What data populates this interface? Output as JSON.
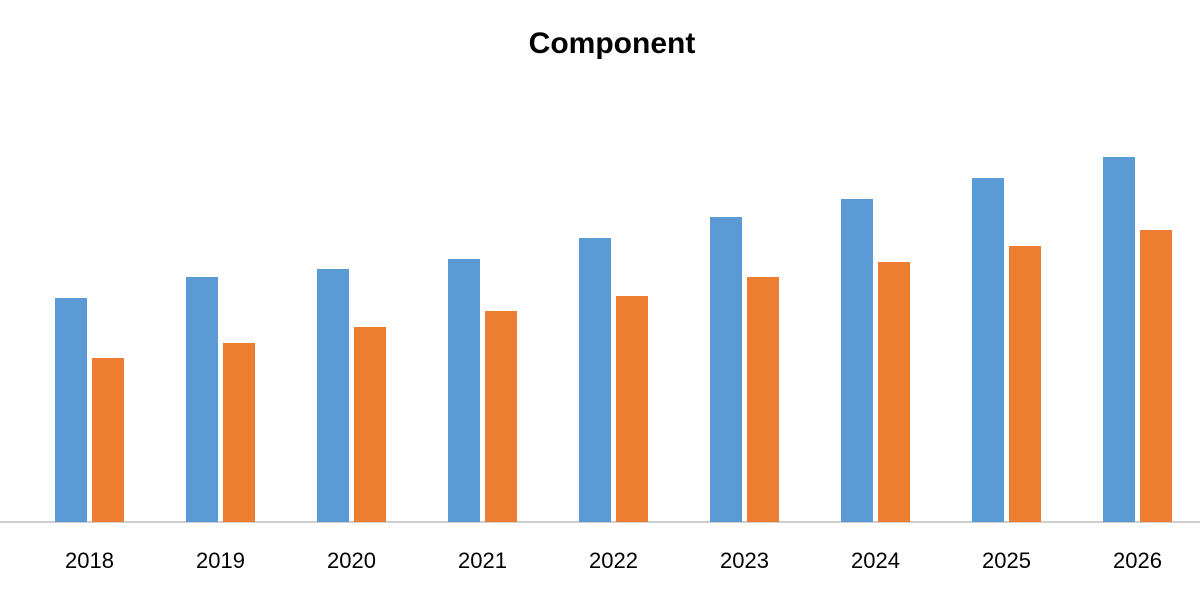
{
  "chart_data": {
    "type": "bar",
    "title": "Component",
    "categories": [
      "2018",
      "2019",
      "2020",
      "2021",
      "2022",
      "2023",
      "2024",
      "2025",
      "2026"
    ],
    "series": [
      {
        "color": "#5b9bd5",
        "values": [
          224,
          245,
          253,
          263,
          284,
          305,
          323,
          344,
          365
        ]
      },
      {
        "color": "#ed7d31",
        "values": [
          164,
          179,
          195,
          211,
          226,
          245,
          260,
          276,
          292
        ]
      }
    ],
    "ylim": [
      0,
      400
    ]
  }
}
